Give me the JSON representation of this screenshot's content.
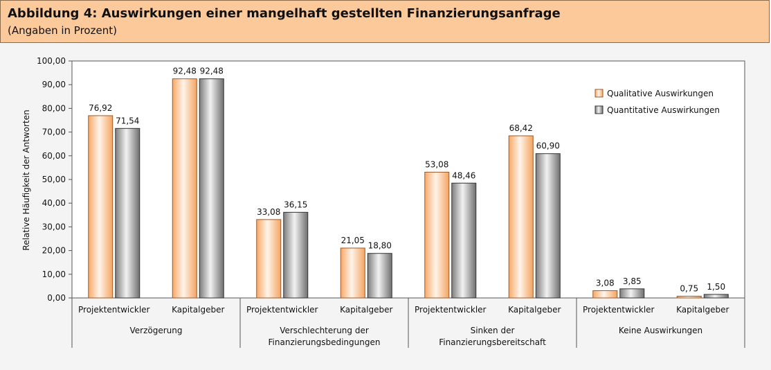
{
  "header": {
    "title": "Abbildung 4: Auswirkungen einer mangelhaft gestellten Finanzierungsanfrage",
    "subtitle": "(Angaben in Prozent)"
  },
  "colors": {
    "qualitative": "#fbbd8b",
    "quantitative": "#a9a9a9",
    "header_bg": "#fcc99b"
  },
  "chart_data": {
    "type": "bar",
    "ylabel": "Relative Häufigkeit der Antworten",
    "ylim": [
      0,
      100
    ],
    "yticks": [
      "0,00",
      "10,00",
      "20,00",
      "30,00",
      "40,00",
      "50,00",
      "60,00",
      "70,00",
      "80,00",
      "90,00",
      "100,00"
    ],
    "legend_position": "top-right",
    "grid": false,
    "groups": [
      {
        "lines": [
          "Verzögerung"
        ],
        "categories": [
          "Projektentwickler",
          "Kapitalgeber"
        ]
      },
      {
        "lines": [
          "Verschlechterung der",
          "Finanzierungsbedingungen"
        ],
        "categories": [
          "Projektentwickler",
          "Kapitalgeber"
        ]
      },
      {
        "lines": [
          "Sinken der",
          "Finanzierungsbereitschaft"
        ],
        "categories": [
          "Projektentwickler",
          "Kapitalgeber"
        ]
      },
      {
        "lines": [
          "Keine Auswirkungen"
        ],
        "categories": [
          "Projektentwickler",
          "Kapitalgeber"
        ]
      }
    ],
    "series": [
      {
        "name": "Qualitative Auswirkungen",
        "values": [
          76.92,
          92.48,
          33.08,
          21.05,
          53.08,
          68.42,
          3.08,
          0.75
        ],
        "labels": [
          "76,92",
          "92,48",
          "33,08",
          "21,05",
          "53,08",
          "68,42",
          "3,08",
          "0,75"
        ]
      },
      {
        "name": "Quantitative Auswirkungen",
        "values": [
          71.54,
          92.48,
          36.15,
          18.8,
          48.46,
          60.9,
          3.85,
          1.5
        ],
        "labels": [
          "71,54",
          "92,48",
          "36,15",
          "18,80",
          "48,46",
          "60,90",
          "3,85",
          "1,50"
        ]
      }
    ]
  }
}
